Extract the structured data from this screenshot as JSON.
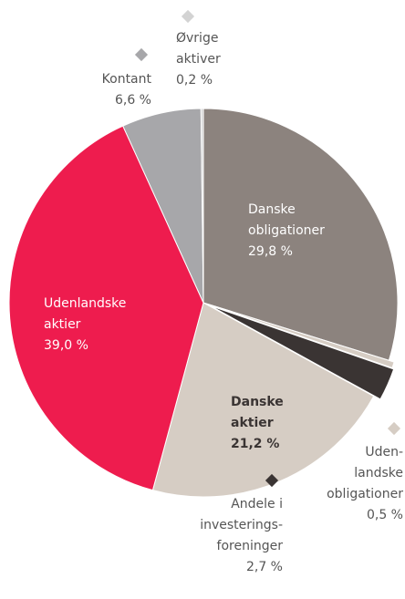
{
  "chart_data": {
    "type": "pie",
    "categories": [
      [
        "Danske",
        "obligationer"
      ],
      [
        "Uden-",
        "landske",
        "obligationer"
      ],
      [
        "Andele i",
        "investerings-",
        "foreninger"
      ],
      [
        "Danske",
        "aktier"
      ],
      [
        "Udenlandske",
        "aktier"
      ],
      [
        "Kontant"
      ],
      [
        "Øvrige",
        "aktiver"
      ]
    ],
    "values": [
      29.8,
      0.5,
      2.7,
      21.2,
      39.0,
      6.6,
      0.2
    ],
    "value_labels": [
      "29,8 %",
      "0,5 %",
      "2,7 %",
      "21,2 %",
      "39,0 %",
      "6,6 %",
      "0,2 %"
    ],
    "colors": [
      "#8c837e",
      "#d6cdc4",
      "#3a3433",
      "#d6cdc4",
      "#ee1c4e",
      "#a7a7aa",
      "#d3d3d3"
    ]
  }
}
